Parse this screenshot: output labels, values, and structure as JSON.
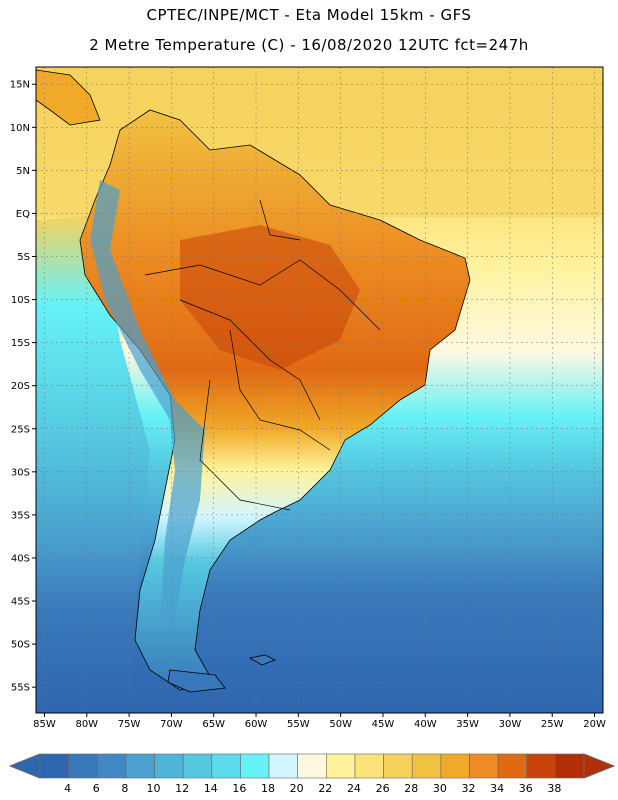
{
  "header": {
    "line1": "CPTEC/INPE/MCT -  Eta Model 15km - GFS",
    "line2": "2 Metre Temperature (C) - 16/08/2020 12UTC fct=247h"
  },
  "map": {
    "lon_range": [
      -86,
      -19
    ],
    "lat_range": [
      17,
      -58
    ],
    "lat_ticks": [
      {
        "value": 15,
        "label": "15N"
      },
      {
        "value": 10,
        "label": "10N"
      },
      {
        "value": 5,
        "label": "5N"
      },
      {
        "value": 0,
        "label": "EQ"
      },
      {
        "value": -5,
        "label": "5S"
      },
      {
        "value": -10,
        "label": "10S"
      },
      {
        "value": -15,
        "label": "15S"
      },
      {
        "value": -20,
        "label": "20S"
      },
      {
        "value": -25,
        "label": "25S"
      },
      {
        "value": -30,
        "label": "30S"
      },
      {
        "value": -35,
        "label": "35S"
      },
      {
        "value": -40,
        "label": "40S"
      },
      {
        "value": -45,
        "label": "45S"
      },
      {
        "value": -50,
        "label": "50S"
      },
      {
        "value": -55,
        "label": "55S"
      }
    ],
    "lon_ticks": [
      {
        "value": -85,
        "label": "85W"
      },
      {
        "value": -80,
        "label": "80W"
      },
      {
        "value": -75,
        "label": "75W"
      },
      {
        "value": -70,
        "label": "70W"
      },
      {
        "value": -65,
        "label": "65W"
      },
      {
        "value": -60,
        "label": "60W"
      },
      {
        "value": -55,
        "label": "55W"
      },
      {
        "value": -50,
        "label": "50W"
      },
      {
        "value": -45,
        "label": "45W"
      },
      {
        "value": -40,
        "label": "40W"
      },
      {
        "value": -35,
        "label": "35W"
      },
      {
        "value": -30,
        "label": "30W"
      },
      {
        "value": -25,
        "label": "25W"
      },
      {
        "value": -20,
        "label": "20W"
      }
    ]
  },
  "colorbar": {
    "labels": [
      "4",
      "6",
      "8",
      "10",
      "12",
      "14",
      "16",
      "18",
      "20",
      "22",
      "24",
      "26",
      "28",
      "30",
      "32",
      "34",
      "36",
      "38"
    ],
    "colors": [
      "#2f66b0",
      "#3878ba",
      "#4189c4",
      "#4aa0cf",
      "#4fb5d8",
      "#55c8e0",
      "#5cdcec",
      "#66f2f7",
      "#d4f7ff",
      "#fff8e1",
      "#fff29a",
      "#fbe27a",
      "#f6d25d",
      "#f1c242",
      "#f0aa28",
      "#ec8c22",
      "#e06a14",
      "#c9440a",
      "#b22e06"
    ]
  }
}
